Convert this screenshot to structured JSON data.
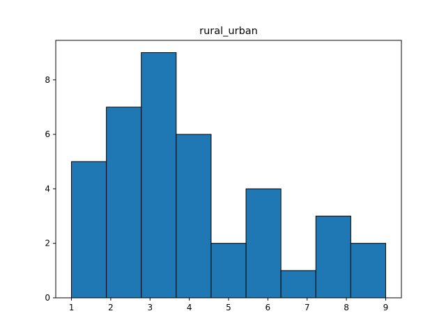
{
  "chart_data": {
    "type": "bar",
    "chart_kind": "histogram",
    "title": "rural_urban",
    "xlabel": "",
    "ylabel": "",
    "bins": [
      {
        "start": 1.0,
        "end": 1.888889,
        "count": 5
      },
      {
        "start": 1.888889,
        "end": 2.777778,
        "count": 7
      },
      {
        "start": 2.777778,
        "end": 3.666667,
        "count": 9
      },
      {
        "start": 3.666667,
        "end": 4.555556,
        "count": 6
      },
      {
        "start": 4.555556,
        "end": 5.444444,
        "count": 2
      },
      {
        "start": 5.444444,
        "end": 6.333333,
        "count": 4
      },
      {
        "start": 6.333333,
        "end": 7.222222,
        "count": 1
      },
      {
        "start": 7.222222,
        "end": 8.111111,
        "count": 3
      },
      {
        "start": 8.111111,
        "end": 9.0,
        "count": 2
      }
    ],
    "xlim": [
      0.6,
      9.4
    ],
    "ylim": [
      0,
      9.45
    ],
    "x_ticks": [
      "1",
      "2",
      "3",
      "4",
      "5",
      "6",
      "7",
      "8",
      "9"
    ],
    "y_ticks": [
      "0",
      "2",
      "4",
      "6",
      "8"
    ],
    "grid": false,
    "bar_color": "#1f77b4",
    "edge_color": "#000000"
  }
}
